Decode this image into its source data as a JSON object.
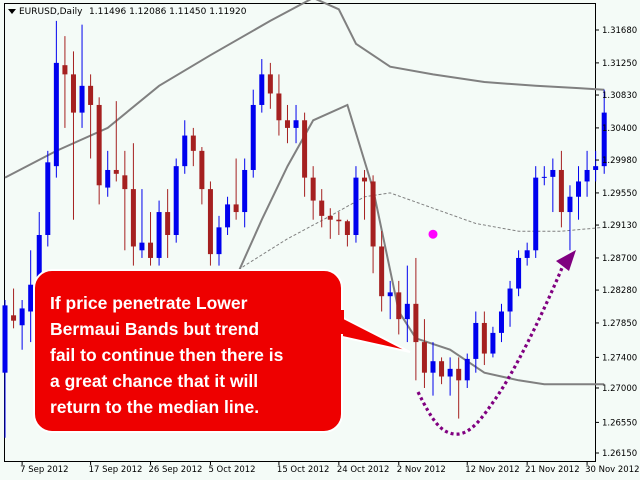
{
  "header": {
    "symbol": "EURUSD,Daily",
    "ohlc": "1.11496 1.12086 1.11450 1.11920"
  },
  "callout": {
    "lines": [
      "If price penetrate Lower",
      "Bermaui Bands but  trend",
      "fail to continue then there is",
      "a great chance that it will",
      "return to the median line."
    ]
  },
  "colors": {
    "background": "#f4fbf7",
    "bull": "#0000ee",
    "bear": "#a52020",
    "band": "#808080",
    "median": "#808080",
    "callout_fill": "#ee0000",
    "arrow": "#800080",
    "dot": "#ff00ff"
  },
  "chart_data": {
    "type": "candlestick",
    "y_ticks": [
      1.2615,
      1.2655,
      1.27,
      1.274,
      1.2785,
      1.2828,
      1.287,
      1.2913,
      1.2955,
      1.2998,
      1.304,
      1.3083,
      1.3125,
      1.3168
    ],
    "y_tick_labels": [
      "1.26150",
      "1.26550",
      "1.27000",
      "1.27400",
      "1.27850",
      "1.28280",
      "1.28700",
      "1.29130",
      "1.29550",
      "1.29980",
      "1.30400",
      "1.30830",
      "1.31250",
      "1.31680"
    ],
    "x_labels": [
      {
        "label": "7 Sep 2012",
        "index": 2
      },
      {
        "label": "17 Sep 2012",
        "index": 10
      },
      {
        "label": "26 Sep 2012",
        "index": 17
      },
      {
        "label": "5 Oct 2012",
        "index": 24
      },
      {
        "label": "15 Oct 2012",
        "index": 32
      },
      {
        "label": "24 Oct 2012",
        "index": 39
      },
      {
        "label": "2 Nov 2012",
        "index": 46
      },
      {
        "label": "12 Nov 2012",
        "index": 54
      },
      {
        "label": "21 Nov 2012",
        "index": 61
      },
      {
        "label": "30 Nov 2012",
        "index": 68
      }
    ],
    "candles": [
      {
        "o": 1.272,
        "h": 1.2815,
        "l": 1.2635,
        "c": 1.2808
      },
      {
        "o": 1.2795,
        "h": 1.283,
        "l": 1.2778,
        "c": 1.2788
      },
      {
        "o": 1.2782,
        "h": 1.2815,
        "l": 1.275,
        "c": 1.2804
      },
      {
        "o": 1.28,
        "h": 1.288,
        "l": 1.276,
        "c": 1.2835
      },
      {
        "o": 1.284,
        "h": 1.293,
        "l": 1.2825,
        "c": 1.29
      },
      {
        "o": 1.29,
        "h": 1.301,
        "l": 1.2885,
        "c": 1.2995
      },
      {
        "o": 1.299,
        "h": 1.318,
        "l": 1.2975,
        "c": 1.3125
      },
      {
        "o": 1.3122,
        "h": 1.316,
        "l": 1.304,
        "c": 1.311
      },
      {
        "o": 1.311,
        "h": 1.314,
        "l": 1.292,
        "c": 1.306
      },
      {
        "o": 1.306,
        "h": 1.3175,
        "l": 1.304,
        "c": 1.3095
      },
      {
        "o": 1.3095,
        "h": 1.311,
        "l": 1.3,
        "c": 1.307
      },
      {
        "o": 1.307,
        "h": 1.308,
        "l": 1.294,
        "c": 1.2965
      },
      {
        "o": 1.2962,
        "h": 1.301,
        "l": 1.295,
        "c": 1.2985
      },
      {
        "o": 1.2985,
        "h": 1.3075,
        "l": 1.297,
        "c": 1.298
      },
      {
        "o": 1.2978,
        "h": 1.301,
        "l": 1.288,
        "c": 1.296
      },
      {
        "o": 1.296,
        "h": 1.302,
        "l": 1.286,
        "c": 1.2885
      },
      {
        "o": 1.288,
        "h": 1.296,
        "l": 1.287,
        "c": 1.289
      },
      {
        "o": 1.289,
        "h": 1.293,
        "l": 1.286,
        "c": 1.287
      },
      {
        "o": 1.287,
        "h": 1.2945,
        "l": 1.286,
        "c": 1.293
      },
      {
        "o": 1.293,
        "h": 1.296,
        "l": 1.287,
        "c": 1.29
      },
      {
        "o": 1.29,
        "h": 1.3,
        "l": 1.289,
        "c": 1.299
      },
      {
        "o": 1.299,
        "h": 1.305,
        "l": 1.298,
        "c": 1.303
      },
      {
        "o": 1.303,
        "h": 1.304,
        "l": 1.299,
        "c": 1.301
      },
      {
        "o": 1.301,
        "h": 1.3015,
        "l": 1.294,
        "c": 1.296
      },
      {
        "o": 1.296,
        "h": 1.297,
        "l": 1.286,
        "c": 1.2875
      },
      {
        "o": 1.2875,
        "h": 1.2925,
        "l": 1.286,
        "c": 1.291
      },
      {
        "o": 1.291,
        "h": 1.295,
        "l": 1.29,
        "c": 1.294
      },
      {
        "o": 1.294,
        "h": 1.3,
        "l": 1.292,
        "c": 1.293
      },
      {
        "o": 1.293,
        "h": 1.3,
        "l": 1.291,
        "c": 1.2985
      },
      {
        "o": 1.2985,
        "h": 1.309,
        "l": 1.2975,
        "c": 1.307
      },
      {
        "o": 1.307,
        "h": 1.313,
        "l": 1.306,
        "c": 1.311
      },
      {
        "o": 1.311,
        "h": 1.3125,
        "l": 1.3065,
        "c": 1.3085
      },
      {
        "o": 1.3085,
        "h": 1.311,
        "l": 1.303,
        "c": 1.305
      },
      {
        "o": 1.305,
        "h": 1.307,
        "l": 1.302,
        "c": 1.304
      },
      {
        "o": 1.304,
        "h": 1.307,
        "l": 1.302,
        "c": 1.305
      },
      {
        "o": 1.305,
        "h": 1.306,
        "l": 1.295,
        "c": 1.2975
      },
      {
        "o": 1.2975,
        "h": 1.299,
        "l": 1.292,
        "c": 1.2945
      },
      {
        "o": 1.2945,
        "h": 1.296,
        "l": 1.291,
        "c": 1.2925
      },
      {
        "o": 1.2925,
        "h": 1.2935,
        "l": 1.2895,
        "c": 1.292
      },
      {
        "o": 1.292,
        "h": 1.293,
        "l": 1.29,
        "c": 1.2918
      },
      {
        "o": 1.2918,
        "h": 1.292,
        "l": 1.2885,
        "c": 1.29
      },
      {
        "o": 1.29,
        "h": 1.299,
        "l": 1.289,
        "c": 1.2975
      },
      {
        "o": 1.2975,
        "h": 1.2985,
        "l": 1.292,
        "c": 1.297
      },
      {
        "o": 1.297,
        "h": 1.2978,
        "l": 1.285,
        "c": 1.2885
      },
      {
        "o": 1.2885,
        "h": 1.2905,
        "l": 1.28,
        "c": 1.282
      },
      {
        "o": 1.282,
        "h": 1.284,
        "l": 1.279,
        "c": 1.2825
      },
      {
        "o": 1.2825,
        "h": 1.284,
        "l": 1.277,
        "c": 1.279
      },
      {
        "o": 1.279,
        "h": 1.286,
        "l": 1.276,
        "c": 1.281
      },
      {
        "o": 1.281,
        "h": 1.287,
        "l": 1.271,
        "c": 1.276
      },
      {
        "o": 1.276,
        "h": 1.279,
        "l": 1.27,
        "c": 1.272
      },
      {
        "o": 1.272,
        "h": 1.276,
        "l": 1.269,
        "c": 1.2735
      },
      {
        "o": 1.2735,
        "h": 1.274,
        "l": 1.2705,
        "c": 1.2715
      },
      {
        "o": 1.2715,
        "h": 1.274,
        "l": 1.269,
        "c": 1.2725
      },
      {
        "o": 1.2725,
        "h": 1.274,
        "l": 1.266,
        "c": 1.271
      },
      {
        "o": 1.271,
        "h": 1.2745,
        "l": 1.27,
        "c": 1.2738
      },
      {
        "o": 1.2738,
        "h": 1.28,
        "l": 1.272,
        "c": 1.2785
      },
      {
        "o": 1.2785,
        "h": 1.28,
        "l": 1.273,
        "c": 1.2745
      },
      {
        "o": 1.2745,
        "h": 1.278,
        "l": 1.274,
        "c": 1.2772
      },
      {
        "o": 1.2772,
        "h": 1.281,
        "l": 1.276,
        "c": 1.28
      },
      {
        "o": 1.28,
        "h": 1.284,
        "l": 1.278,
        "c": 1.283
      },
      {
        "o": 1.283,
        "h": 1.288,
        "l": 1.282,
        "c": 1.287
      },
      {
        "o": 1.287,
        "h": 1.289,
        "l": 1.286,
        "c": 1.288
      },
      {
        "o": 1.288,
        "h": 1.299,
        "l": 1.287,
        "c": 1.2975
      },
      {
        "o": 1.2975,
        "h": 1.299,
        "l": 1.2965,
        "c": 1.2976
      },
      {
        "o": 1.2976,
        "h": 1.3,
        "l": 1.293,
        "c": 1.2985
      },
      {
        "o": 1.2985,
        "h": 1.301,
        "l": 1.291,
        "c": 1.293
      },
      {
        "o": 1.293,
        "h": 1.2965,
        "l": 1.288,
        "c": 1.295
      },
      {
        "o": 1.295,
        "h": 1.299,
        "l": 1.292,
        "c": 1.297
      },
      {
        "o": 1.297,
        "h": 1.301,
        "l": 1.295,
        "c": 1.2985
      },
      {
        "o": 1.2985,
        "h": 1.301,
        "l": 1.297,
        "c": 1.299
      },
      {
        "o": 1.299,
        "h": 1.309,
        "l": 1.298,
        "c": 1.306
      }
    ],
    "upper_band": [
      [
        0,
        1.2975
      ],
      [
        6,
        1.301
      ],
      [
        12,
        1.304
      ],
      [
        18,
        1.3095
      ],
      [
        24,
        1.3135
      ],
      [
        31,
        1.318
      ],
      [
        36,
        1.321
      ],
      [
        39,
        1.3195
      ],
      [
        41,
        1.315
      ],
      [
        45,
        1.312
      ],
      [
        50,
        1.311
      ],
      [
        56,
        1.31
      ],
      [
        62,
        1.3095
      ],
      [
        67,
        1.3092
      ],
      [
        70,
        1.309
      ]
    ],
    "median_band": [
      [
        23,
        1.282
      ],
      [
        28,
        1.286
      ],
      [
        33,
        1.2895
      ],
      [
        38,
        1.2925
      ],
      [
        42,
        1.295
      ],
      [
        45,
        1.2955
      ],
      [
        50,
        1.2935
      ],
      [
        55,
        1.2915
      ],
      [
        60,
        1.2905
      ],
      [
        65,
        1.2905
      ],
      [
        70,
        1.291
      ]
    ],
    "lower_band": [
      [
        27,
        1.2845
      ],
      [
        30,
        1.292
      ],
      [
        33,
        1.299
      ],
      [
        36,
        1.305
      ],
      [
        40,
        1.307
      ],
      [
        43,
        1.296
      ],
      [
        46,
        1.28
      ],
      [
        48,
        1.2765
      ],
      [
        52,
        1.275
      ],
      [
        56,
        1.272
      ],
      [
        60,
        1.271
      ],
      [
        63,
        1.2705
      ],
      [
        67,
        1.2705
      ],
      [
        70,
        1.2705
      ]
    ],
    "dot": {
      "index": 50,
      "price": 1.2901
    }
  }
}
